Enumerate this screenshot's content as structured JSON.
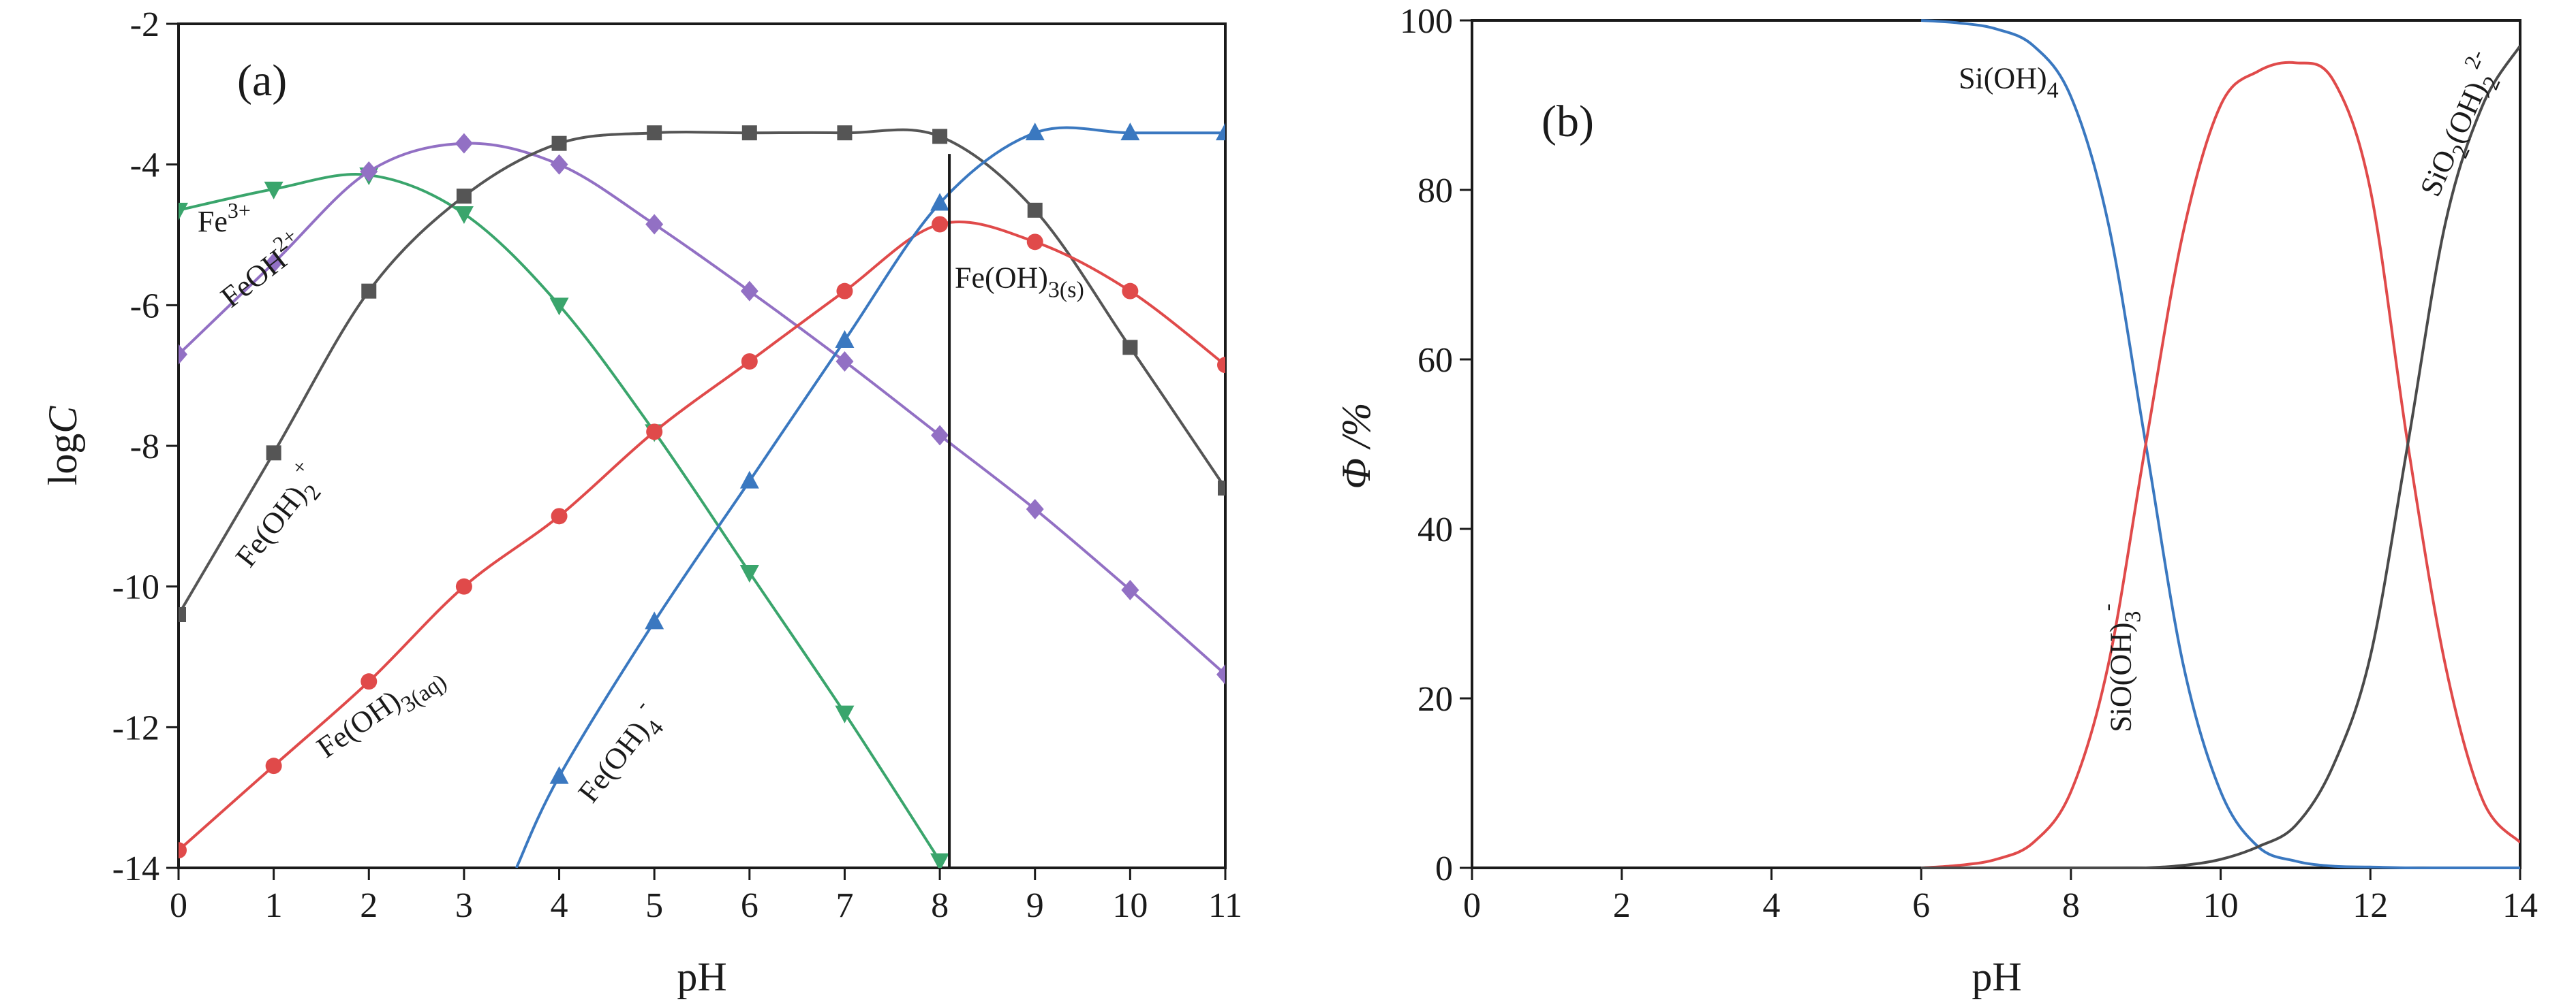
{
  "chart_data": [
    {
      "type": "line",
      "panel_label": "(a)",
      "xlabel": "pH",
      "ylabel": "logC",
      "xlim": [
        0,
        11
      ],
      "ylim": [
        -14,
        -2
      ],
      "xticks": [
        0,
        1,
        2,
        3,
        4,
        5,
        6,
        7,
        8,
        9,
        10,
        11
      ],
      "yticks": [
        -14,
        -12,
        -10,
        -8,
        -6,
        -4,
        -2
      ],
      "grid": false,
      "x": [
        0,
        1,
        2,
        3,
        4,
        5,
        6,
        7,
        8,
        9,
        10,
        11
      ],
      "precipitation_ph": 8.1,
      "precipitation_label": "Fe(OH)3(s)",
      "series": [
        {
          "name": "Fe3+",
          "color": "#3aa56c",
          "marker": "triangle-down",
          "values": [
            -4.65,
            -4.35,
            -4.15,
            -4.7,
            -6.0,
            -7.8,
            -9.8,
            -11.8,
            -13.9,
            null,
            null,
            null
          ],
          "label_x": 0.2,
          "label_y": -4.95
        },
        {
          "name": "FeOH2+",
          "color": "#9270c4",
          "marker": "diamond",
          "values": [
            -6.7,
            -5.4,
            -4.1,
            -3.7,
            -4.0,
            -4.85,
            -5.8,
            -6.8,
            -7.85,
            -8.9,
            -10.05,
            -11.25
          ],
          "label_x": 0.55,
          "label_y": -6.05
        },
        {
          "name": "Fe(OH)2+",
          "color": "#555555",
          "marker": "square",
          "values": [
            -10.4,
            -8.1,
            -5.8,
            -4.45,
            -3.7,
            -3.55,
            -3.55,
            -3.55,
            -3.6,
            -4.65,
            -6.6,
            -8.6
          ],
          "label_x": 0.75,
          "label_y": -9.75
        },
        {
          "name": "Fe(OH)3(aq)",
          "color": "#e04a4a",
          "marker": "circle",
          "values": [
            -13.75,
            -12.55,
            -11.35,
            -10.0,
            -9.0,
            -7.8,
            -6.8,
            -5.8,
            -4.85,
            -5.1,
            -5.8,
            -6.85
          ],
          "label_x": 1.55,
          "label_y": -12.45
        },
        {
          "name": "Fe(OH)4-",
          "color": "#3a78c0",
          "marker": "triangle-up",
          "values": [
            null,
            null,
            null,
            null,
            -12.7,
            -10.5,
            -8.5,
            -6.5,
            -4.55,
            -3.55,
            -3.55,
            -3.55
          ],
          "label_x": 4.35,
          "label_y": -13.1
        }
      ]
    },
    {
      "type": "line",
      "panel_label": "(b)",
      "xlabel": "pH",
      "ylabel": "Φ /%",
      "xlim": [
        0,
        14
      ],
      "ylim": [
        0,
        100
      ],
      "xticks": [
        0,
        2,
        4,
        6,
        8,
        10,
        12,
        14
      ],
      "yticks": [
        0,
        20,
        40,
        60,
        80,
        100
      ],
      "grid": false,
      "x": [
        6,
        6.5,
        7,
        7.5,
        8,
        8.5,
        9,
        9.5,
        10,
        10.5,
        11,
        11.5,
        12,
        12.5,
        13,
        13.5,
        14
      ],
      "series": [
        {
          "name": "Si(OH)4",
          "color": "#3a78c0",
          "values": [
            100,
            99.7,
            99,
            97,
            91,
            76,
            50,
            24,
            9,
            2.5,
            0.8,
            0.2,
            0.1,
            0,
            0,
            0,
            0
          ],
          "label_x": 6.5,
          "label_y": 92
        },
        {
          "name": "SiO(OH)3-",
          "color": "#e04a4a",
          "values": [
            0,
            0.3,
            1,
            3,
            9,
            24,
            50,
            75,
            90,
            94,
            95,
            93,
            80,
            50,
            24,
            8,
            3
          ],
          "label_x": 8.8,
          "label_y": 16
        },
        {
          "name": "SiO2(OH)22-",
          "color": "#4a4a4a",
          "values": [
            0,
            0,
            0,
            0,
            0,
            0,
            0,
            0.3,
            1,
            2.5,
            5,
            12,
            25,
            50,
            76,
            90,
            97
          ],
          "label_x": 12.9,
          "label_y": 79
        }
      ]
    }
  ],
  "colors": {
    "axis": "#1a1a1a"
  }
}
